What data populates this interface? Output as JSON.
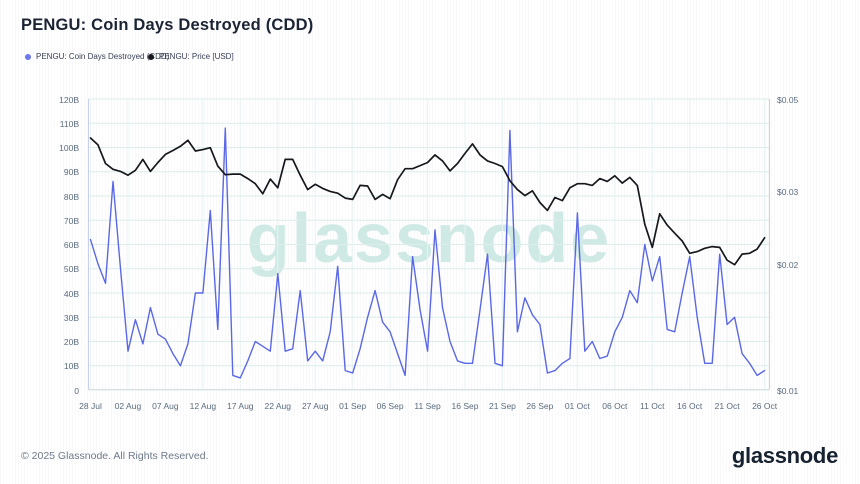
{
  "page": {
    "title": "PENGU: Coin Days Destroyed (CDD)",
    "watermark": "glassnode",
    "footer_copyright": "© 2025 Glassnode. All Rights Reserved.",
    "footer_logo": "glassnode"
  },
  "legend": {
    "items": [
      {
        "label": "PENGU: Coin Days Destroyed (CDD)"
      },
      {
        "label": "PENGU: Price [USD]"
      }
    ]
  },
  "chart_data": {
    "type": "line",
    "title": "PENGU: Coin Days Destroyed (CDD)",
    "grid": true,
    "legend_position": "top-left",
    "x_tick_labels": [
      "28 Jul",
      "02 Aug",
      "07 Aug",
      "12 Aug",
      "17 Aug",
      "22 Aug",
      "27 Aug",
      "01 Sep",
      "06 Sep",
      "11 Sep",
      "16 Sep",
      "21 Sep",
      "26 Sep",
      "01 Oct",
      "06 Oct",
      "11 Oct",
      "16 Oct",
      "21 Oct",
      "26 Oct"
    ],
    "x_tick_day_indices": [
      0,
      5,
      10,
      15,
      20,
      25,
      30,
      35,
      40,
      45,
      50,
      55,
      60,
      65,
      70,
      75,
      80,
      85,
      90
    ],
    "x_range_days": 91,
    "left_axis": {
      "ticks": [
        "120B",
        "110B",
        "100B",
        "90B",
        "80B",
        "70B",
        "60B",
        "50B",
        "40B",
        "30B",
        "20B",
        "10B",
        "0"
      ],
      "tick_values": [
        120,
        110,
        100,
        90,
        80,
        70,
        60,
        50,
        40,
        30,
        20,
        10,
        0
      ],
      "min": 0,
      "max": 120,
      "scale": "linear",
      "unit": "billions"
    },
    "right_axis": {
      "ticks": [
        "$0.05",
        "$0.03",
        "$0.02",
        "$0.01"
      ],
      "tick_values": [
        0.05,
        0.03,
        0.02,
        0.01
      ],
      "min": 0.01,
      "max": 0.05,
      "scale": "log",
      "unit": "USD"
    },
    "series": [
      {
        "name": "PENGU: Coin Days Destroyed (CDD)",
        "axis": "left",
        "color": "#5a68e6",
        "unit": "billions",
        "values": [
          62,
          52,
          44,
          86,
          50,
          16,
          29,
          19,
          34,
          23,
          21,
          15,
          10,
          19,
          40,
          40,
          74,
          25,
          108,
          6,
          5,
          12,
          20,
          18,
          16,
          48,
          16,
          17,
          41,
          12,
          16,
          12,
          24,
          51,
          8,
          7,
          17,
          30,
          41,
          28,
          24,
          15,
          6,
          55,
          33,
          16,
          66,
          34,
          20,
          12,
          11,
          11,
          33,
          56,
          11,
          10,
          107,
          24,
          38,
          31,
          27,
          7,
          8,
          11,
          13,
          73,
          16,
          20,
          13,
          14,
          24,
          30,
          41,
          36,
          60,
          45,
          55,
          25,
          24,
          40,
          55,
          30,
          11,
          11,
          56,
          27,
          30,
          15,
          11,
          6,
          8
        ]
      },
      {
        "name": "PENGU: Price [USD]",
        "axis": "right",
        "color": "#16181d",
        "unit": "USD",
        "values": [
          0.0403,
          0.0388,
          0.035,
          0.0339,
          0.0335,
          0.0328,
          0.0337,
          0.0358,
          0.0335,
          0.0352,
          0.0368,
          0.0376,
          0.0385,
          0.0398,
          0.0375,
          0.0378,
          0.0382,
          0.0345,
          0.0329,
          0.033,
          0.033,
          0.0322,
          0.0313,
          0.0296,
          0.0321,
          0.0306,
          0.0358,
          0.0358,
          0.0328,
          0.0303,
          0.0312,
          0.0305,
          0.03,
          0.0297,
          0.0289,
          0.0287,
          0.031,
          0.0309,
          0.0287,
          0.0295,
          0.0288,
          0.032,
          0.034,
          0.034,
          0.0346,
          0.0352,
          0.0367,
          0.0355,
          0.0336,
          0.035,
          0.037,
          0.039,
          0.0367,
          0.0355,
          0.035,
          0.0344,
          0.0318,
          0.0303,
          0.0293,
          0.0301,
          0.0282,
          0.027,
          0.029,
          0.0285,
          0.0306,
          0.0313,
          0.0313,
          0.031,
          0.0322,
          0.0317,
          0.0327,
          0.0314,
          0.0324,
          0.031,
          0.025,
          0.022,
          0.0265,
          0.0249,
          0.0238,
          0.0228,
          0.0213,
          0.0215,
          0.0219,
          0.0221,
          0.022,
          0.0205,
          0.02,
          0.0212,
          0.0213,
          0.0218,
          0.0232
        ]
      }
    ],
    "colors": {
      "grid_h": "#dcedea",
      "grid_v": "#e9f3f3",
      "spine_left": "#c8cfec",
      "spine_right": "#c9d4da",
      "spine_bottom": "#d7dee4"
    }
  }
}
